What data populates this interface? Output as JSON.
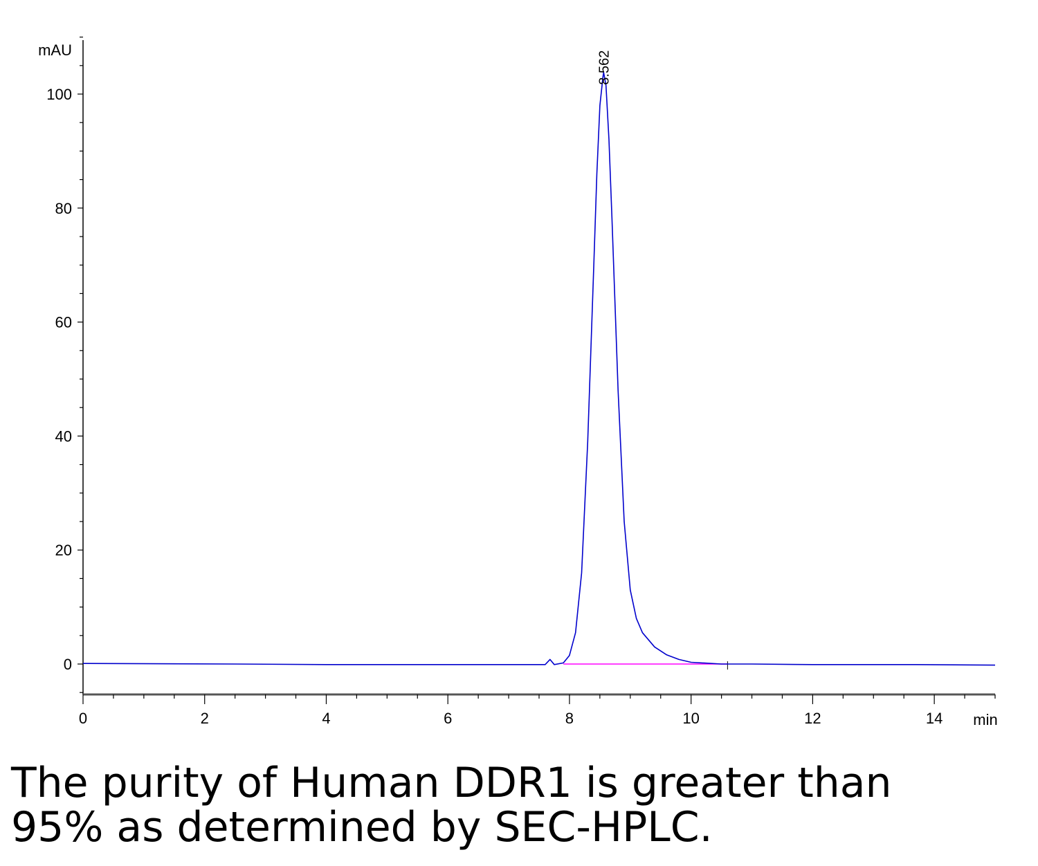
{
  "chart_data": {
    "type": "line",
    "xlabel": "min",
    "ylabel": "mAU",
    "xlim": [
      0,
      15
    ],
    "ylim": [
      -5,
      110
    ],
    "x_ticks": [
      0,
      2,
      4,
      6,
      8,
      10,
      12,
      14
    ],
    "y_ticks": [
      0,
      20,
      40,
      60,
      80,
      100
    ],
    "grid": false,
    "series": [
      {
        "color": "#0000cc",
        "x": [
          0,
          2.5,
          4,
          6,
          7.6,
          7.68,
          7.75,
          7.9,
          8.0,
          8.1,
          8.2,
          8.3,
          8.4,
          8.45,
          8.5,
          8.55,
          8.562,
          8.6,
          8.65,
          8.7,
          8.8,
          8.9,
          9.0,
          9.1,
          9.2,
          9.4,
          9.6,
          9.8,
          10.0,
          10.5,
          11.0,
          12.0,
          13.7,
          15.0
        ],
        "y": [
          0.1,
          0.0,
          -0.1,
          -0.1,
          -0.1,
          0.8,
          -0.1,
          0.2,
          1.5,
          5.5,
          16,
          39,
          70,
          86,
          98,
          103,
          103.8,
          101.5,
          92,
          78,
          48,
          25,
          13,
          8,
          5.5,
          3,
          1.6,
          0.8,
          0.3,
          0.0,
          0.0,
          -0.1,
          -0.1,
          -0.2
        ]
      }
    ],
    "baseline": {
      "color": "#ff00ff",
      "x": [
        7.9,
        10.6
      ],
      "y": [
        0,
        0
      ]
    },
    "peak_labels": [
      {
        "text": "8.562",
        "x": 8.562,
        "y": 103.8
      }
    ]
  },
  "caption": {
    "line1": "The purity of Human DDR1 is greater than",
    "line2": "95% as determined by SEC-HPLC."
  }
}
